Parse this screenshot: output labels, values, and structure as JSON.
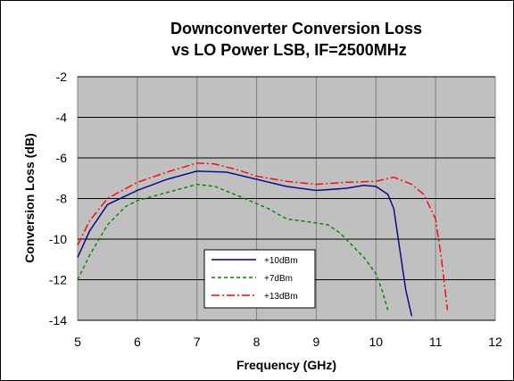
{
  "chart_data": {
    "type": "line",
    "title_line1": "Downconverter Conversion Loss",
    "title_line2": "vs LO Power LSB, IF=2500MHz",
    "xlabel": "Frequency (GHz)",
    "ylabel": "Conversion Loss (dB)",
    "xlim": [
      5,
      12
    ],
    "ylim": [
      -14,
      -2
    ],
    "xticks": [
      "5",
      "6",
      "7",
      "8",
      "9",
      "10",
      "11",
      "12"
    ],
    "yticks": [
      "-2",
      "-4",
      "-6",
      "-8",
      "-10",
      "-12",
      "-14"
    ],
    "grid": true,
    "plot_background": "#c0c0c0",
    "legend_position": "lower-left-inside",
    "series": [
      {
        "name": "+10dBm",
        "color": "#000080",
        "dash": "solid",
        "points": [
          [
            5.0,
            -10.9
          ],
          [
            5.2,
            -9.6
          ],
          [
            5.5,
            -8.3
          ],
          [
            6.0,
            -7.6
          ],
          [
            6.5,
            -7.05
          ],
          [
            7.0,
            -6.65
          ],
          [
            7.5,
            -6.7
          ],
          [
            8.0,
            -7.05
          ],
          [
            8.5,
            -7.4
          ],
          [
            9.0,
            -7.6
          ],
          [
            9.5,
            -7.5
          ],
          [
            9.8,
            -7.35
          ],
          [
            10.0,
            -7.4
          ],
          [
            10.2,
            -7.8
          ],
          [
            10.3,
            -8.5
          ],
          [
            10.4,
            -10.5
          ],
          [
            10.5,
            -12.5
          ],
          [
            10.6,
            -13.8
          ]
        ]
      },
      {
        "name": "+7dBm",
        "color": "#008000",
        "dash": "4,3",
        "points": [
          [
            5.0,
            -12.0
          ],
          [
            5.2,
            -10.8
          ],
          [
            5.5,
            -9.3
          ],
          [
            5.8,
            -8.4
          ],
          [
            6.0,
            -8.1
          ],
          [
            6.5,
            -7.7
          ],
          [
            7.0,
            -7.3
          ],
          [
            7.3,
            -7.4
          ],
          [
            7.8,
            -8.0
          ],
          [
            8.2,
            -8.5
          ],
          [
            8.5,
            -9.0
          ],
          [
            9.0,
            -9.2
          ],
          [
            9.2,
            -9.3
          ],
          [
            9.4,
            -9.7
          ],
          [
            9.6,
            -10.3
          ],
          [
            9.8,
            -10.9
          ],
          [
            10.0,
            -11.7
          ],
          [
            10.1,
            -12.5
          ],
          [
            10.2,
            -13.5
          ]
        ]
      },
      {
        "name": "+13dBm",
        "color": "#ff0000",
        "dash": "9,3,2,3",
        "points": [
          [
            5.0,
            -10.3
          ],
          [
            5.2,
            -9.1
          ],
          [
            5.5,
            -8.0
          ],
          [
            6.0,
            -7.2
          ],
          [
            6.5,
            -6.7
          ],
          [
            7.0,
            -6.25
          ],
          [
            7.3,
            -6.3
          ],
          [
            7.7,
            -6.6
          ],
          [
            8.0,
            -6.9
          ],
          [
            8.5,
            -7.15
          ],
          [
            9.0,
            -7.3
          ],
          [
            9.5,
            -7.2
          ],
          [
            10.0,
            -7.15
          ],
          [
            10.3,
            -6.95
          ],
          [
            10.6,
            -7.3
          ],
          [
            10.8,
            -7.8
          ],
          [
            11.0,
            -9.0
          ],
          [
            11.1,
            -11.0
          ],
          [
            11.2,
            -13.5
          ]
        ]
      }
    ]
  }
}
